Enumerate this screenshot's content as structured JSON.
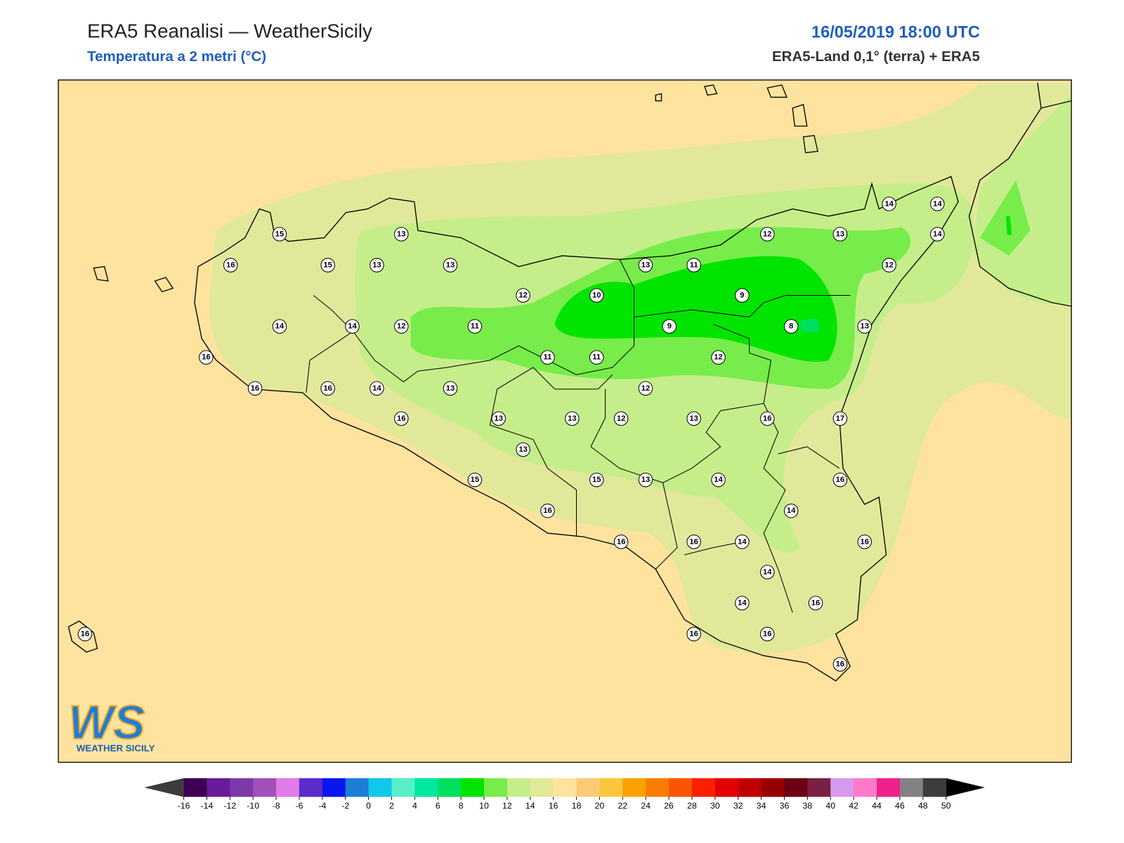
{
  "header": {
    "title": "ERA5 Reanalisi — WeatherSicily",
    "subtitle": "Temperatura a 2 metri (°C)",
    "datetime": "16/05/2019 18:00 UTC",
    "source": "ERA5-Land 0,1° (terra) + ERA5"
  },
  "logo": {
    "mark": "WS",
    "caption": "WEATHER SICILY"
  },
  "stations": [
    15,
    13,
    16,
    15,
    13,
    13,
    14,
    14,
    12,
    11,
    12,
    10,
    13,
    11,
    9,
    9,
    8,
    12,
    13,
    14,
    14,
    14,
    12,
    13,
    11,
    11,
    12,
    16,
    16,
    16,
    14,
    13,
    12,
    16,
    13,
    13,
    12,
    13,
    16,
    17,
    13,
    15,
    15,
    13,
    14,
    16,
    14,
    16,
    16,
    16,
    14,
    16,
    14,
    14,
    16,
    16,
    16,
    16,
    16
  ],
  "colorbar": {
    "ticks": [
      -16,
      -14,
      -12,
      -10,
      -8,
      -6,
      -4,
      -2,
      0,
      2,
      4,
      6,
      8,
      10,
      12,
      14,
      16,
      18,
      20,
      22,
      24,
      26,
      28,
      30,
      32,
      34,
      36,
      38,
      40,
      42,
      44,
      46,
      48,
      50
    ],
    "colors": [
      "#3c0050",
      "#6a1a9a",
      "#7c3aa8",
      "#a050b8",
      "#e07be8",
      "#5a2ccc",
      "#0a16f0",
      "#1c7ed8",
      "#10c8e8",
      "#58f0c8",
      "#00e8a0",
      "#00e060",
      "#00e400",
      "#78ec4a",
      "#c5ee8a",
      "#e2e89a",
      "#fee39f",
      "#fccb75",
      "#fbc63d",
      "#fba200",
      "#fb7d00",
      "#fb5400",
      "#fb1e00",
      "#e40000",
      "#c00000",
      "#960000",
      "#6c0014",
      "#7a2040",
      "#d49aee",
      "#fe7ac8",
      "#f0208c",
      "#828282",
      "#3c3c3c"
    ],
    "under_color": "#3c3c3c",
    "over_color": "#000000"
  }
}
